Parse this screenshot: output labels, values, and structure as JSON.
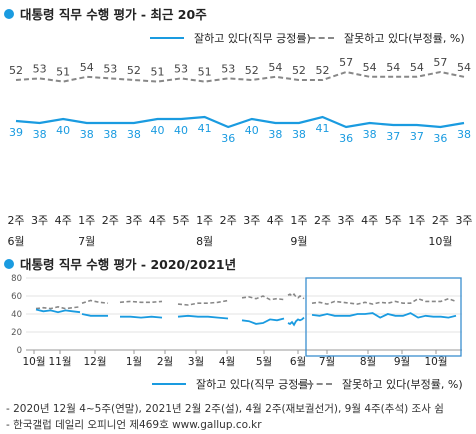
{
  "chart1": {
    "title": "대통령 직무 수행 평가 - 최근 20주",
    "legend_approve": "잘하고 있다(직무 긍정률)",
    "legend_disapprove": "잘못하고 있다(부정률, %)",
    "colors": {
      "approve": "#1a9be0",
      "disapprove": "#888888"
    },
    "month_labels": [
      {
        "week_index": 0,
        "text": "6월"
      },
      {
        "week_index": 3,
        "text": "7월"
      },
      {
        "week_index": 8,
        "text": "8월"
      },
      {
        "week_index": 12,
        "text": "9월"
      },
      {
        "week_index": 18,
        "text": "10월"
      }
    ]
  },
  "chart2": {
    "title": "대통령 직무 수행 평가 - 2020/2021년",
    "legend_approve": "잘하고 있다(직무 긍정률)",
    "legend_disapprove": "잘못하고 있다(부정률, %)",
    "colors": {
      "approve": "#1a9be0",
      "disapprove": "#888888",
      "highlight": "#3a8fd0"
    }
  },
  "footnotes": [
    "- 2020년 12월 4~5주(연말), 2021년 2월 2주(설), 4월 2주(재보궐선거), 9월 4주(추석) 조사 쉼",
    "- 한국갤럽 데일리 오피니언 제469호 www.gallup.co.kr"
  ],
  "chart_data": [
    {
      "type": "line",
      "title": "대통령 직무 수행 평가 - 최근 20주",
      "categories": [
        "2주",
        "3주",
        "4주",
        "1주",
        "2주",
        "3주",
        "4주",
        "5주",
        "1주",
        "2주",
        "3주",
        "4주",
        "1주",
        "2주",
        "3주",
        "4주",
        "5주",
        "1주",
        "2주",
        "3주"
      ],
      "series": [
        {
          "name": "잘하고 있다(직무 긍정률)",
          "values": [
            39,
            38,
            40,
            38,
            38,
            38,
            40,
            40,
            41,
            36,
            40,
            38,
            38,
            41,
            36,
            38,
            37,
            37,
            36,
            38
          ]
        },
        {
          "name": "잘못하고 있다(부정률, %)",
          "values": [
            52,
            53,
            51,
            54,
            53,
            52,
            51,
            53,
            51,
            53,
            52,
            54,
            52,
            52,
            57,
            54,
            54,
            54,
            57,
            54
          ]
        }
      ],
      "ylim": [
        0,
        100
      ],
      "grid": false,
      "legend": "top"
    },
    {
      "type": "line",
      "title": "대통령 직무 수행 평가 - 2020/2021년",
      "x_tick_labels": [
        "10월",
        "11월",
        "12월",
        "1월",
        "2월",
        "3월",
        "4월",
        "5월",
        "6월",
        "7월",
        "8월",
        "9월",
        "10월"
      ],
      "y_ticks": [
        0,
        20,
        40,
        60,
        80
      ],
      "ylim": [
        0,
        80
      ],
      "series": [
        {
          "name": "잘하고 있다(직무 긍정률)",
          "segments": [
            [
              45,
              43,
              44,
              42,
              44,
              43,
              42
            ],
            [
              40,
              38,
              38,
              38
            ],
            [
              37,
              37,
              36,
              37,
              36
            ],
            [
              37,
              38,
              37,
              37,
              36,
              35
            ],
            [
              33,
              32,
              29,
              30,
              34,
              33,
              35
            ],
            [
              30,
              29,
              31,
              28,
              32,
              34,
              33,
              34,
              36
            ],
            [
              39,
              38,
              40,
              38,
              38,
              38,
              40,
              40,
              41,
              36,
              40,
              38,
              38,
              41,
              36,
              38,
              37,
              37,
              36,
              38
            ]
          ]
        },
        {
          "name": "잘못하고 있다(부정률, %)",
          "segments": [
            [
              46,
              47,
              46,
              48,
              46,
              47,
              48
            ],
            [
              52,
              55,
              53,
              52
            ],
            [
              53,
              54,
              53,
              53,
              54
            ],
            [
              51,
              50,
              52,
              52,
              53,
              55
            ],
            [
              58,
              59,
              57,
              60,
              56,
              57,
              56
            ],
            [
              61,
              62,
              60,
              62,
              59,
              58,
              60,
              59,
              57
            ],
            [
              52,
              53,
              51,
              54,
              53,
              52,
              51,
              53,
              51,
              53,
              52,
              54,
              52,
              52,
              57,
              54,
              54,
              54,
              57,
              54
            ]
          ]
        }
      ],
      "highlight": "최근 20주",
      "grid": true,
      "legend": "bottom"
    }
  ]
}
